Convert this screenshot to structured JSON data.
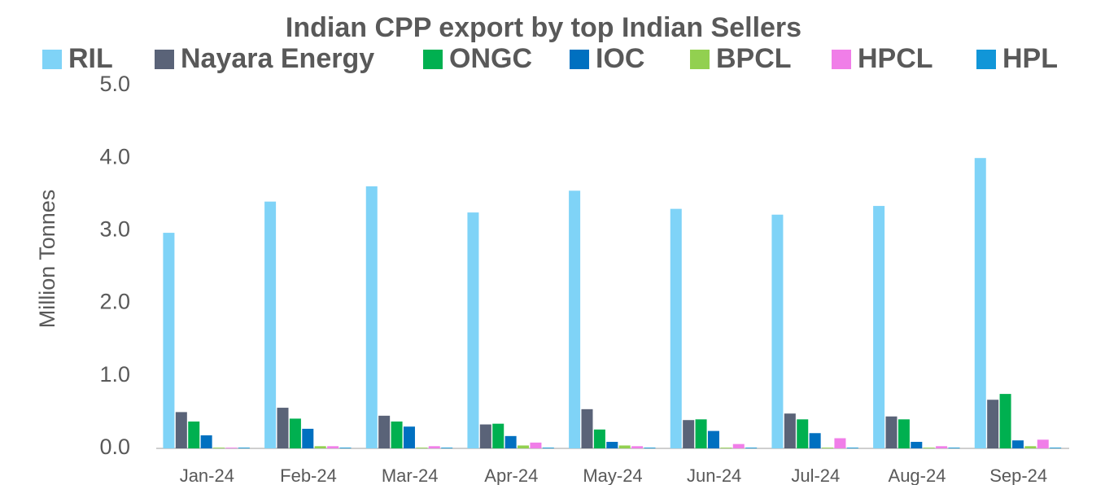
{
  "chart_data": {
    "type": "bar",
    "title": "Indian CPP export by top Indian Sellers",
    "y_label": "Million Tonnes",
    "categories": [
      "Jan-24",
      "Feb-24",
      "Mar-24",
      "Apr-24",
      "May-24",
      "Jun-24",
      "Jul-24",
      "Aug-24",
      "Sep-24"
    ],
    "series": [
      {
        "name": "RIL",
        "color": "#7fd3f7",
        "values": [
          2.97,
          3.4,
          3.61,
          3.25,
          3.55,
          3.3,
          3.22,
          3.34,
          4.0
        ]
      },
      {
        "name": "Nayara Energy",
        "color": "#5a6378",
        "values": [
          0.5,
          0.56,
          0.45,
          0.33,
          0.54,
          0.39,
          0.48,
          0.44,
          0.67
        ]
      },
      {
        "name": "ONGC",
        "color": "#00b050",
        "values": [
          0.37,
          0.41,
          0.37,
          0.34,
          0.26,
          0.4,
          0.4,
          0.4,
          0.75
        ]
      },
      {
        "name": "IOC",
        "color": "#0070c0",
        "values": [
          0.18,
          0.27,
          0.3,
          0.17,
          0.09,
          0.24,
          0.21,
          0.09,
          0.11
        ]
      },
      {
        "name": "BPCL",
        "color": "#92d050",
        "values": [
          0.01,
          0.03,
          0.01,
          0.04,
          0.04,
          0.01,
          0.01,
          0.01,
          0.03
        ]
      },
      {
        "name": "HPCL",
        "color": "#f07ee8",
        "values": [
          0.01,
          0.03,
          0.03,
          0.08,
          0.03,
          0.06,
          0.14,
          0.03,
          0.12
        ]
      },
      {
        "name": "HPL",
        "color": "#1196d8",
        "values": [
          0.01,
          0.01,
          0.01,
          0.01,
          0.01,
          0.01,
          0.01,
          0.01,
          0.01
        ]
      }
    ],
    "ylim": [
      0,
      5
    ],
    "yticks": [
      {
        "value": 0,
        "label": "0.0"
      },
      {
        "value": 1,
        "label": "1.0"
      },
      {
        "value": 2,
        "label": "2.0"
      },
      {
        "value": 3,
        "label": "3.0"
      },
      {
        "value": 4,
        "label": "4.0"
      },
      {
        "value": 5,
        "label": "5.0"
      }
    ],
    "grid": false,
    "legend": "top"
  }
}
